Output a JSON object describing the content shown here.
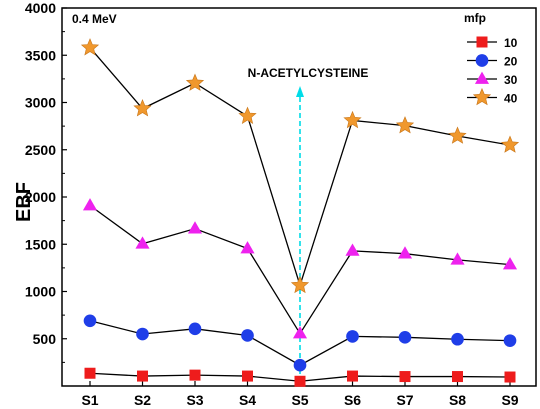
{
  "chart_data": {
    "type": "line",
    "annotation_top_left": "0.4 MeV",
    "arrow_label": "N-ACETYLCYSTEINE",
    "arrow_at": "S5",
    "ylabel": "EBF",
    "xlabel": "",
    "categories": [
      "S1",
      "S2",
      "S3",
      "S4",
      "S5",
      "S6",
      "S7",
      "S8",
      "S9"
    ],
    "ylim": [
      0,
      4000
    ],
    "yticks": [
      500,
      1000,
      1500,
      2000,
      2500,
      3000,
      3500,
      4000
    ],
    "grid": false,
    "legend": {
      "title": "mfp",
      "placement": "top-right"
    },
    "series": [
      {
        "name": "10",
        "marker": "square",
        "color": "#ee1c1c",
        "values": [
          135,
          105,
          115,
          105,
          50,
          105,
          100,
          100,
          95
        ]
      },
      {
        "name": "20",
        "marker": "circle",
        "color": "#1f3ee8",
        "values": [
          690,
          550,
          605,
          535,
          220,
          525,
          515,
          495,
          480
        ]
      },
      {
        "name": "30",
        "marker": "triangle",
        "color": "#ee22ee",
        "values": [
          1910,
          1505,
          1665,
          1455,
          555,
          1430,
          1400,
          1335,
          1285
        ]
      },
      {
        "name": "40",
        "marker": "star",
        "color": "#f0982d",
        "values": [
          3580,
          2935,
          3205,
          2855,
          1065,
          2810,
          2755,
          2645,
          2550
        ]
      }
    ]
  }
}
